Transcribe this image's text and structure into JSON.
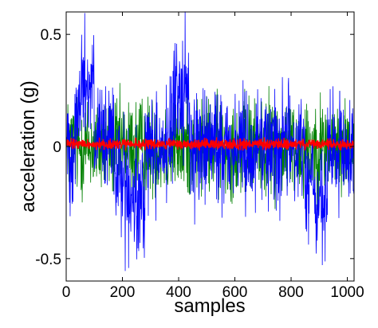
{
  "chart_data": {
    "type": "line",
    "title": "",
    "xlabel": "samples",
    "ylabel": "acceleration (g)",
    "xlim": [
      0,
      1024
    ],
    "ylim": [
      -0.6,
      0.6
    ],
    "xticks": [
      0,
      200,
      400,
      600,
      800,
      1000
    ],
    "yticks": [
      -0.5,
      0,
      0.5
    ],
    "ytick_labels": [
      "-0.5",
      "0",
      "0.5"
    ],
    "grid": false,
    "legend": "none",
    "n_samples": 1024,
    "series": [
      {
        "color": "#008000",
        "noise_amplitude": 0.11,
        "segments": [
          {
            "x": [
              0,
              1024
            ],
            "mean": 0.0
          }
        ]
      },
      {
        "color": "#0000ff",
        "noise_amplitude": 0.13,
        "segments": [
          {
            "x": [
              0,
              30
            ],
            "mean": 0.0
          },
          {
            "x": [
              30,
              50
            ],
            "mean": 0.15
          },
          {
            "x": [
              50,
              100
            ],
            "mean": 0.28
          },
          {
            "x": [
              100,
              170
            ],
            "mean": 0.02
          },
          {
            "x": [
              170,
              210
            ],
            "mean": -0.12
          },
          {
            "x": [
              210,
              280
            ],
            "mean": -0.26
          },
          {
            "x": [
              280,
              380
            ],
            "mean": 0.0
          },
          {
            "x": [
              380,
              440
            ],
            "mean": 0.24
          },
          {
            "x": [
              440,
              850
            ],
            "mean": 0.0
          },
          {
            "x": [
              850,
              880
            ],
            "mean": -0.15
          },
          {
            "x": [
              880,
              930
            ],
            "mean": -0.27
          },
          {
            "x": [
              930,
              1024
            ],
            "mean": -0.03
          }
        ]
      },
      {
        "color": "#ff0000",
        "noise_amplitude": 0.012,
        "segments": [
          {
            "x": [
              0,
              1024
            ],
            "mean": 0.01
          }
        ]
      }
    ]
  }
}
